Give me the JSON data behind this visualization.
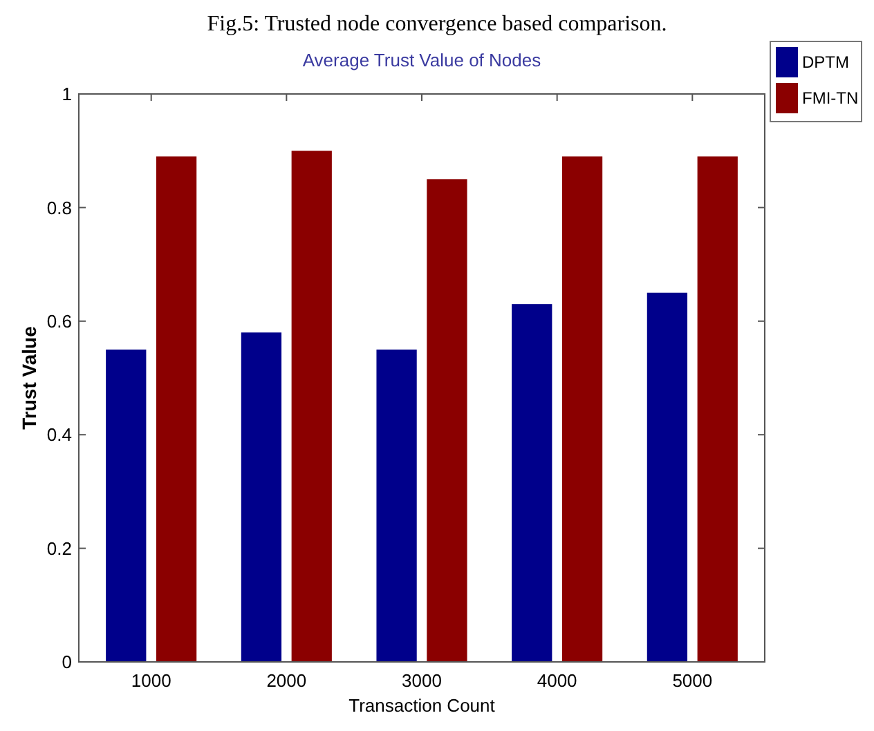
{
  "chart_data": {
    "type": "bar",
    "title": "Average Trust Value of Nodes",
    "xlabel": "Transaction Count",
    "ylabel": "Trust Value",
    "annotations": [
      "Fig.5: Trusted node convergence based comparison."
    ],
    "categories": [
      "1000",
      "2000",
      "3000",
      "4000",
      "5000"
    ],
    "series": [
      {
        "name": "DPTM",
        "color": "#00008b",
        "values": [
          0.55,
          0.58,
          0.55,
          0.63,
          0.65
        ]
      },
      {
        "name": "FMI-TN",
        "color": "#8b0000",
        "values": [
          0.89,
          0.9,
          0.85,
          0.89,
          0.89
        ]
      }
    ],
    "ylim": [
      0,
      1
    ],
    "yticks": [
      0,
      0.2,
      0.4,
      0.6,
      0.8,
      1
    ],
    "legend": "top right",
    "grid": false
  }
}
